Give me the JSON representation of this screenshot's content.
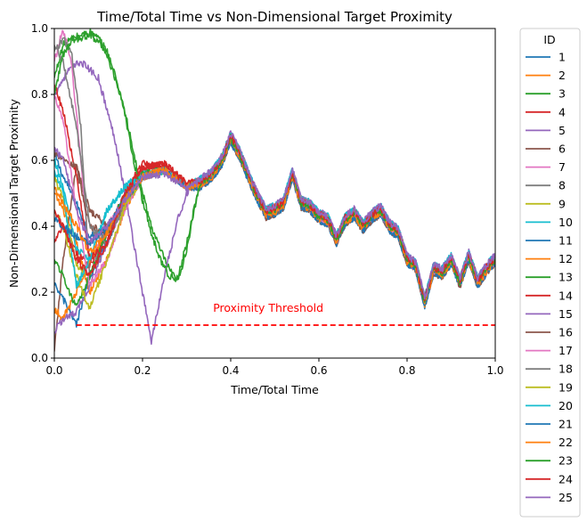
{
  "chart_data": {
    "type": "line",
    "title": "Time/Total Time vs Non-Dimensional Target Proximity",
    "xlabel": "Time/Total Time",
    "ylabel": "Non-Dimensional Target Proximity",
    "xlim": [
      0.0,
      1.0
    ],
    "ylim": [
      0.0,
      1.0
    ],
    "xticks": [
      "0.0",
      "0.2",
      "0.4",
      "0.6",
      "0.8",
      "1.0"
    ],
    "yticks": [
      "0.0",
      "0.2",
      "0.4",
      "0.6",
      "0.8",
      "1.0"
    ],
    "grid": false,
    "legend": {
      "title": "ID",
      "placement": "outside-right"
    },
    "threshold": {
      "label": "Proximity Threshold",
      "y": 0.1,
      "x_start": 0.05,
      "x_end": 1.0,
      "color": "#ff0000",
      "style": "dashed"
    },
    "common_path": {
      "x": [
        0.3,
        0.33,
        0.36,
        0.38,
        0.4,
        0.42,
        0.45,
        0.48,
        0.5,
        0.52,
        0.54,
        0.56,
        0.58,
        0.6,
        0.62,
        0.64,
        0.66,
        0.68,
        0.7,
        0.72,
        0.74,
        0.76,
        0.78,
        0.8,
        0.82,
        0.84,
        0.86,
        0.88,
        0.9,
        0.92,
        0.94,
        0.96,
        0.98,
        1.0
      ],
      "y": [
        0.51,
        0.53,
        0.56,
        0.6,
        0.67,
        0.62,
        0.52,
        0.44,
        0.45,
        0.47,
        0.56,
        0.47,
        0.46,
        0.43,
        0.42,
        0.36,
        0.42,
        0.44,
        0.4,
        0.43,
        0.45,
        0.4,
        0.38,
        0.3,
        0.28,
        0.17,
        0.27,
        0.26,
        0.3,
        0.23,
        0.31,
        0.23,
        0.27,
        0.3
      ]
    },
    "series": [
      {
        "name": "1",
        "color": "#1f77b4",
        "x": [
          0.0,
          0.02,
          0.05,
          0.08,
          0.12,
          0.16,
          0.2,
          0.25,
          0.3
        ],
        "y": [
          0.62,
          0.55,
          0.47,
          0.37,
          0.38,
          0.46,
          0.55,
          0.57,
          0.52
        ]
      },
      {
        "name": "2",
        "color": "#ff7f0e",
        "x": [
          0.0,
          0.02,
          0.05,
          0.08,
          0.12,
          0.16,
          0.2,
          0.25,
          0.3
        ],
        "y": [
          0.5,
          0.45,
          0.35,
          0.2,
          0.3,
          0.45,
          0.55,
          0.57,
          0.52
        ]
      },
      {
        "name": "3",
        "color": "#2ca02c",
        "x": [
          0.0,
          0.02,
          0.04,
          0.06,
          0.08,
          0.1,
          0.12,
          0.14,
          0.16,
          0.18,
          0.2,
          0.22,
          0.24,
          0.26,
          0.28,
          0.3
        ],
        "y": [
          0.85,
          0.95,
          0.97,
          0.98,
          0.99,
          0.97,
          0.93,
          0.85,
          0.75,
          0.62,
          0.5,
          0.4,
          0.33,
          0.27,
          0.23,
          0.33
        ]
      },
      {
        "name": "4",
        "color": "#d62728",
        "x": [
          0.0,
          0.02,
          0.05,
          0.08,
          0.12,
          0.16,
          0.2,
          0.25,
          0.3
        ],
        "y": [
          0.35,
          0.4,
          0.32,
          0.28,
          0.38,
          0.5,
          0.59,
          0.58,
          0.52
        ]
      },
      {
        "name": "5",
        "color": "#9467bd",
        "x": [
          0.0,
          0.03,
          0.06,
          0.1,
          0.14,
          0.18,
          0.22,
          0.25,
          0.28,
          0.3
        ],
        "y": [
          0.8,
          0.87,
          0.9,
          0.85,
          0.65,
          0.35,
          0.05,
          0.25,
          0.42,
          0.5
        ]
      },
      {
        "name": "6",
        "color": "#8c564b",
        "x": [
          0.0,
          0.02,
          0.05,
          0.08,
          0.12,
          0.16,
          0.2,
          0.25,
          0.3
        ],
        "y": [
          0.02,
          0.3,
          0.58,
          0.45,
          0.4,
          0.48,
          0.55,
          0.57,
          0.52
        ]
      },
      {
        "name": "7",
        "color": "#e377c2",
        "x": [
          0.0,
          0.02,
          0.04,
          0.06,
          0.08,
          0.12,
          0.16,
          0.2,
          0.25,
          0.3
        ],
        "y": [
          0.9,
          1.0,
          0.88,
          0.6,
          0.3,
          0.4,
          0.48,
          0.55,
          0.57,
          0.52
        ]
      },
      {
        "name": "8",
        "color": "#7f7f7f",
        "x": [
          0.0,
          0.02,
          0.04,
          0.06,
          0.08,
          0.12,
          0.16,
          0.2,
          0.25,
          0.3
        ],
        "y": [
          0.93,
          0.97,
          0.92,
          0.7,
          0.25,
          0.38,
          0.47,
          0.55,
          0.57,
          0.52
        ]
      },
      {
        "name": "9",
        "color": "#bcbd22",
        "x": [
          0.0,
          0.02,
          0.05,
          0.08,
          0.12,
          0.16,
          0.2,
          0.25,
          0.3
        ],
        "y": [
          0.55,
          0.48,
          0.28,
          0.25,
          0.35,
          0.48,
          0.55,
          0.57,
          0.52
        ]
      },
      {
        "name": "10",
        "color": "#17becf",
        "x": [
          0.0,
          0.02,
          0.05,
          0.08,
          0.12,
          0.16,
          0.2,
          0.25,
          0.3
        ],
        "y": [
          0.6,
          0.52,
          0.33,
          0.3,
          0.45,
          0.52,
          0.56,
          0.57,
          0.52
        ]
      },
      {
        "name": "11",
        "color": "#1f77b4",
        "x": [
          0.0,
          0.02,
          0.05,
          0.08,
          0.12,
          0.16,
          0.2,
          0.25,
          0.3
        ],
        "y": [
          0.22,
          0.18,
          0.1,
          0.25,
          0.35,
          0.48,
          0.55,
          0.57,
          0.52
        ]
      },
      {
        "name": "12",
        "color": "#ff7f0e",
        "x": [
          0.0,
          0.02,
          0.05,
          0.08,
          0.12,
          0.16,
          0.2,
          0.25,
          0.3
        ],
        "y": [
          0.15,
          0.12,
          0.2,
          0.3,
          0.38,
          0.48,
          0.55,
          0.57,
          0.52
        ]
      },
      {
        "name": "13",
        "color": "#2ca02c",
        "x": [
          0.0,
          0.02,
          0.05,
          0.08,
          0.12,
          0.16,
          0.2,
          0.25,
          0.3
        ],
        "y": [
          0.3,
          0.25,
          0.15,
          0.25,
          0.38,
          0.5,
          0.56,
          0.57,
          0.52
        ]
      },
      {
        "name": "14",
        "color": "#d62728",
        "x": [
          0.0,
          0.02,
          0.05,
          0.08,
          0.12,
          0.16,
          0.2,
          0.25,
          0.3
        ],
        "y": [
          0.83,
          0.75,
          0.55,
          0.3,
          0.35,
          0.48,
          0.58,
          0.59,
          0.53
        ]
      },
      {
        "name": "15",
        "color": "#9467bd",
        "x": [
          0.0,
          0.02,
          0.05,
          0.08,
          0.12,
          0.16,
          0.2,
          0.25,
          0.3
        ],
        "y": [
          0.08,
          0.12,
          0.14,
          0.22,
          0.35,
          0.48,
          0.55,
          0.57,
          0.52
        ]
      },
      {
        "name": "16",
        "color": "#8c564b",
        "x": [
          0.0,
          0.02,
          0.05,
          0.08,
          0.12,
          0.16,
          0.2,
          0.25,
          0.3
        ],
        "y": [
          0.62,
          0.6,
          0.58,
          0.4,
          0.38,
          0.48,
          0.55,
          0.57,
          0.52
        ]
      },
      {
        "name": "17",
        "color": "#e377c2",
        "x": [
          0.0,
          0.02,
          0.05,
          0.08,
          0.12,
          0.16,
          0.2,
          0.25,
          0.3
        ],
        "y": [
          0.8,
          0.72,
          0.45,
          0.22,
          0.3,
          0.45,
          0.55,
          0.57,
          0.52
        ]
      },
      {
        "name": "18",
        "color": "#7f7f7f",
        "x": [
          0.0,
          0.02,
          0.05,
          0.08,
          0.12,
          0.16,
          0.2,
          0.25,
          0.3
        ],
        "y": [
          0.95,
          0.9,
          0.7,
          0.4,
          0.35,
          0.47,
          0.55,
          0.57,
          0.52
        ]
      },
      {
        "name": "19",
        "color": "#bcbd22",
        "x": [
          0.0,
          0.02,
          0.05,
          0.08,
          0.12,
          0.16,
          0.2,
          0.25,
          0.3
        ],
        "y": [
          0.45,
          0.4,
          0.25,
          0.15,
          0.3,
          0.46,
          0.55,
          0.57,
          0.52
        ]
      },
      {
        "name": "20",
        "color": "#17becf",
        "x": [
          0.0,
          0.02,
          0.05,
          0.08,
          0.12,
          0.16,
          0.2,
          0.25,
          0.3
        ],
        "y": [
          0.57,
          0.5,
          0.22,
          0.3,
          0.45,
          0.52,
          0.55,
          0.57,
          0.52
        ]
      },
      {
        "name": "21",
        "color": "#1f77b4",
        "x": [
          0.0,
          0.02,
          0.05,
          0.08,
          0.12,
          0.16,
          0.2,
          0.25,
          0.3
        ],
        "y": [
          0.42,
          0.4,
          0.37,
          0.35,
          0.4,
          0.48,
          0.55,
          0.57,
          0.52
        ]
      },
      {
        "name": "22",
        "color": "#ff7f0e",
        "x": [
          0.0,
          0.02,
          0.05,
          0.08,
          0.12,
          0.16,
          0.2,
          0.25,
          0.3
        ],
        "y": [
          0.52,
          0.47,
          0.4,
          0.32,
          0.38,
          0.48,
          0.55,
          0.57,
          0.52
        ]
      },
      {
        "name": "23",
        "color": "#2ca02c",
        "x": [
          0.0,
          0.02,
          0.04,
          0.06,
          0.08,
          0.1,
          0.12,
          0.14,
          0.16,
          0.18,
          0.2,
          0.22,
          0.24,
          0.26,
          0.28,
          0.3
        ],
        "y": [
          0.8,
          0.92,
          0.96,
          0.97,
          0.98,
          0.96,
          0.92,
          0.84,
          0.74,
          0.6,
          0.48,
          0.38,
          0.3,
          0.25,
          0.24,
          0.35
        ]
      },
      {
        "name": "24",
        "color": "#d62728",
        "x": [
          0.0,
          0.02,
          0.05,
          0.08,
          0.12,
          0.16,
          0.2,
          0.25,
          0.3
        ],
        "y": [
          0.45,
          0.4,
          0.3,
          0.25,
          0.35,
          0.5,
          0.58,
          0.59,
          0.53
        ]
      },
      {
        "name": "25",
        "color": "#9467bd",
        "x": [
          0.0,
          0.02,
          0.05,
          0.08,
          0.12,
          0.16,
          0.2,
          0.25,
          0.3
        ],
        "y": [
          0.64,
          0.6,
          0.45,
          0.35,
          0.4,
          0.48,
          0.55,
          0.56,
          0.51
        ]
      }
    ]
  }
}
